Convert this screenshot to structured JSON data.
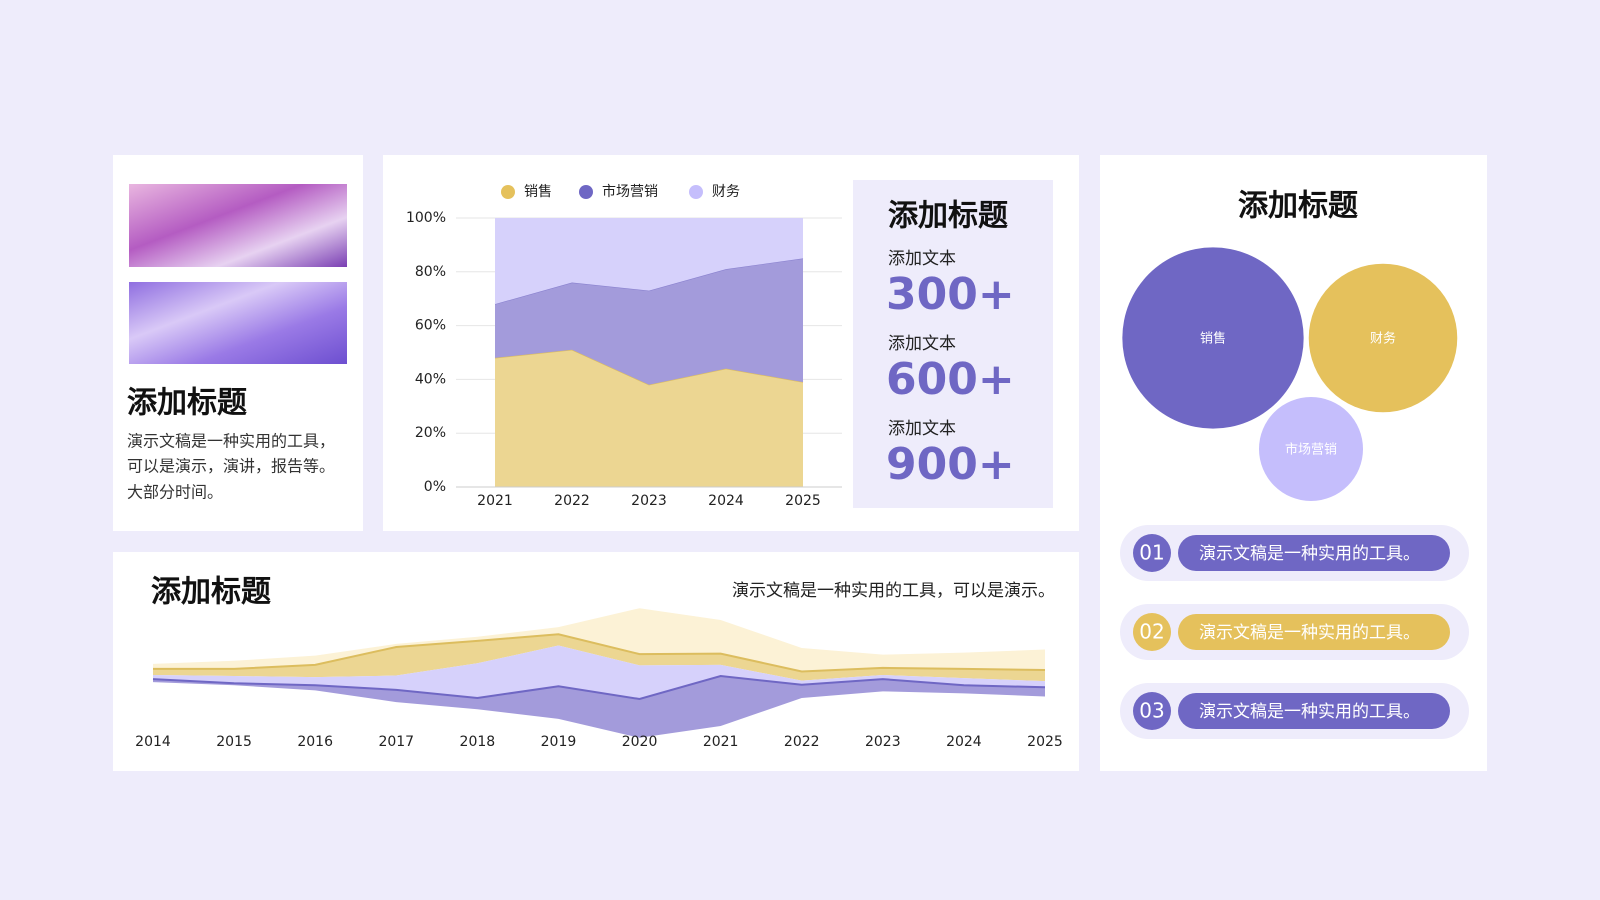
{
  "left_card": {
    "title": "添加标题",
    "lines": [
      "演示文稿是一种实用的工具，",
      "可以是演示，演讲，报告等。",
      "大部分时间。"
    ]
  },
  "stats": {
    "title": "添加标题",
    "items": [
      {
        "label": "添加文本",
        "value": "300+"
      },
      {
        "label": "添加文本",
        "value": "600+"
      },
      {
        "label": "添加文本",
        "value": "900+"
      }
    ]
  },
  "list": [
    {
      "number": "01",
      "text": "演示文稿是一种实用的工具。",
      "color": "#6f67c4"
    },
    {
      "number": "02",
      "text": "演示文稿是一种实用的工具。",
      "color": "#e5c15c"
    },
    {
      "number": "03",
      "text": "演示文稿是一种实用的工具。",
      "color": "#6f67c4"
    }
  ],
  "chart_data": [
    {
      "type": "stacked_area",
      "categories": [
        "2021",
        "2022",
        "2023",
        "2024",
        "2025"
      ],
      "series": [
        {
          "name": "销售",
          "color": "#ecd692",
          "values": [
            48,
            51,
            38,
            44,
            39
          ]
        },
        {
          "name": "市场营销",
          "color": "#a39bdb",
          "values": [
            20,
            25,
            35,
            37,
            46
          ]
        },
        {
          "name": "财务",
          "color": "#d6d1fb",
          "values": [
            32,
            24,
            27,
            19,
            15
          ]
        }
      ],
      "ylim": [
        0,
        100
      ],
      "yticks": [
        {
          "value": 0,
          "label": "0%"
        },
        {
          "value": 20,
          "label": "20%"
        },
        {
          "value": 40,
          "label": "40%"
        },
        {
          "value": 60,
          "label": "60%"
        },
        {
          "value": 80,
          "label": "80%"
        },
        {
          "value": 100,
          "label": "100%"
        }
      ],
      "grid": true
    },
    {
      "type": "streamgraph",
      "title": "添加标题",
      "subtitle": "演示文稿是一种实用的工具，可以是演示。",
      "categories": [
        "2014",
        "2015",
        "2016",
        "2017",
        "2018",
        "2019",
        "2020",
        "2021",
        "2022",
        "2023",
        "2024",
        "2025"
      ],
      "series": [
        {
          "color": "#a39bdb",
          "values": [
            3,
            2,
            5,
            12,
            11,
            32,
            38,
            49,
            13,
            12,
            8,
            9
          ]
        },
        {
          "color": "#d6d1fb",
          "values": [
            4,
            7,
            8,
            14,
            34,
            40,
            33,
            11,
            4,
            4,
            7,
            6
          ]
        },
        {
          "color": "#ecd692",
          "values": [
            6,
            7,
            12,
            28,
            22,
            11,
            11,
            11,
            9,
            7,
            9,
            11
          ]
        },
        {
          "color": "#fcf2d6",
          "values": [
            5,
            8,
            9,
            3,
            4,
            7,
            45,
            33,
            23,
            13,
            16,
            20
          ]
        }
      ]
    },
    {
      "type": "bubble",
      "title": "添加标题",
      "series": [
        {
          "name": "销售",
          "color": "#6f67c4",
          "values": [
            79
          ]
        },
        {
          "name": "财务",
          "color": "#e5c15c",
          "values": [
            53
          ]
        },
        {
          "name": "市场营销",
          "color": "#c5befc",
          "values": [
            26
          ]
        }
      ]
    }
  ]
}
